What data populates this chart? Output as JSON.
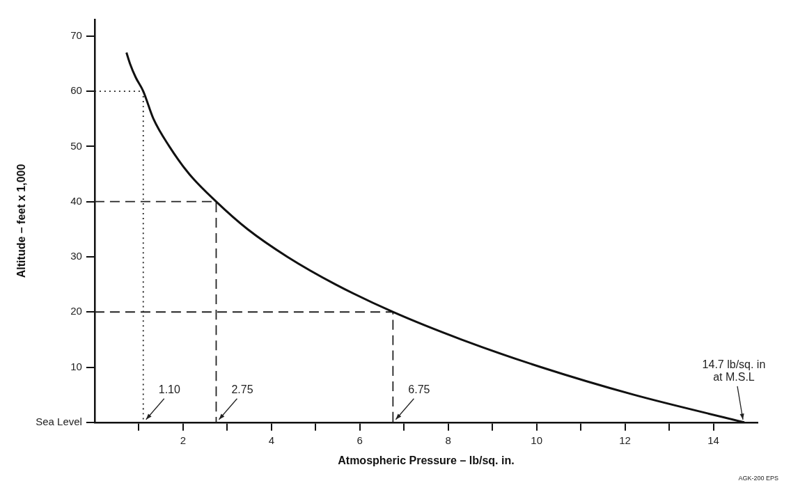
{
  "chart_data": {
    "type": "line",
    "xlabel": "Atmospheric Pressure – lb/sq. in.",
    "ylabel": "Altitude – feet x 1,000",
    "xlim": [
      0,
      15
    ],
    "ylim": [
      0,
      73
    ],
    "xticks": [
      {
        "value": 1,
        "label": null
      },
      2,
      {
        "value": 3,
        "label": null
      },
      4,
      {
        "value": 5,
        "label": null
      },
      6,
      {
        "value": 7,
        "label": null
      },
      8,
      {
        "value": 9,
        "label": null
      },
      10,
      {
        "value": 11,
        "label": null
      },
      12,
      {
        "value": 13,
        "label": null
      },
      14
    ],
    "yticks": [
      {
        "value": 0,
        "label": "Sea Level"
      },
      10,
      20,
      30,
      40,
      50,
      60,
      70
    ],
    "grid": false,
    "legend": false,
    "marker": "none",
    "series": [
      {
        "color": "#111111",
        "x": [
          0.72,
          0.8,
          0.93,
          1.1,
          1.33,
          1.69,
          2.14,
          2.75,
          3.46,
          4.36,
          5.45,
          6.75,
          8.3,
          10.1,
          12.2,
          14.7
        ],
        "values": [
          67,
          65,
          62.5,
          60,
          55,
          50,
          45,
          40,
          35,
          30,
          25,
          20,
          15,
          10,
          5,
          0
        ]
      },
      {
        "color": "#222222",
        "line_style": "dotted",
        "x": [
          0,
          1.1,
          1.1
        ],
        "values": [
          60,
          60,
          0
        ]
      },
      {
        "color": "#222222",
        "line_style": "dashed",
        "x": [
          0,
          2.75,
          2.75
        ],
        "values": [
          40,
          40,
          0
        ]
      },
      {
        "color": "#222222",
        "line_style": "dashed",
        "x": [
          0,
          6.75,
          6.75
        ],
        "values": [
          20,
          20,
          0
        ]
      }
    ],
    "annotations": [
      {
        "text": "1.10",
        "x": 1.1,
        "y": 0
      },
      {
        "text": "2.75",
        "x": 2.75,
        "y": 0
      },
      {
        "text": "6.75",
        "x": 6.75,
        "y": 0
      },
      {
        "text": "14.7 lb/sq. in\nat M.S.L",
        "x": 14.7,
        "y": 0
      },
      "AGK-200 EPS"
    ]
  }
}
